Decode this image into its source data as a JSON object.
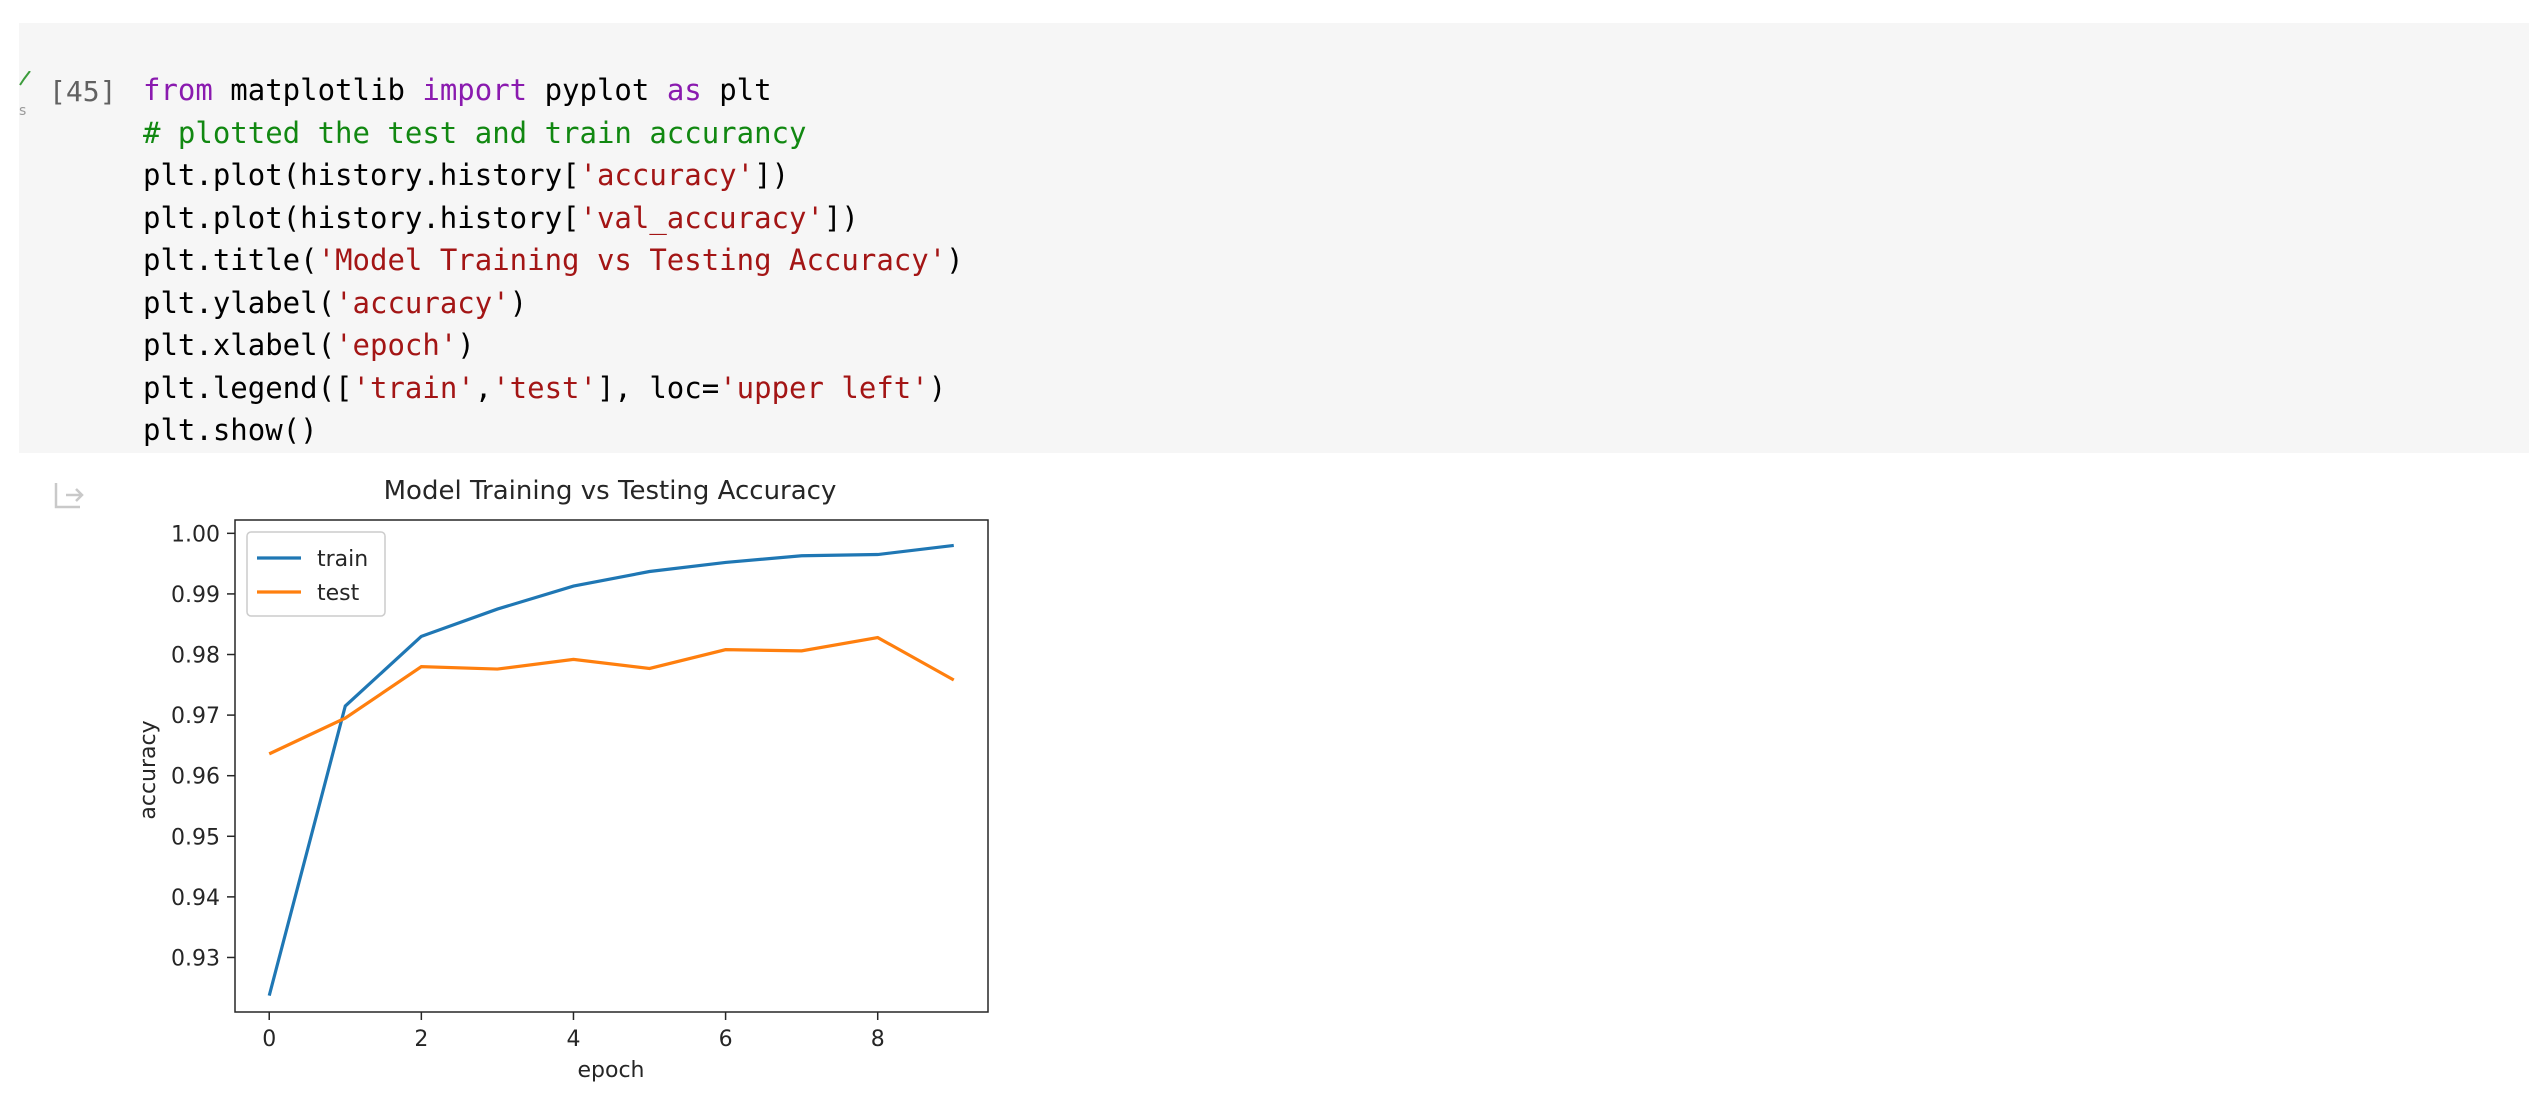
{
  "cell": {
    "execution_count": "[45]",
    "code_lines": [
      [
        {
          "t": "from",
          "c": "kw"
        },
        {
          "t": " matplotlib ",
          "c": ""
        },
        {
          "t": "import",
          "c": "kw"
        },
        {
          "t": " pyplot ",
          "c": ""
        },
        {
          "t": "as",
          "c": "kw"
        },
        {
          "t": " plt",
          "c": ""
        }
      ],
      [
        {
          "t": "# plotted the test and train accurancy",
          "c": "cmt"
        }
      ],
      [
        {
          "t": "plt.plot(history.history[",
          "c": ""
        },
        {
          "t": "'accuracy'",
          "c": "str"
        },
        {
          "t": "])",
          "c": ""
        }
      ],
      [
        {
          "t": "plt.plot(history.history[",
          "c": ""
        },
        {
          "t": "'val_accuracy'",
          "c": "str"
        },
        {
          "t": "])",
          "c": ""
        }
      ],
      [
        {
          "t": "plt.title(",
          "c": ""
        },
        {
          "t": "'Model Training vs Testing Accuracy'",
          "c": "str"
        },
        {
          "t": ")",
          "c": ""
        }
      ],
      [
        {
          "t": "plt.ylabel(",
          "c": ""
        },
        {
          "t": "'accuracy'",
          "c": "str"
        },
        {
          "t": ")",
          "c": ""
        }
      ],
      [
        {
          "t": "plt.xlabel(",
          "c": ""
        },
        {
          "t": "'epoch'",
          "c": "str"
        },
        {
          "t": ")",
          "c": ""
        }
      ],
      [
        {
          "t": "plt.legend([",
          "c": ""
        },
        {
          "t": "'train'",
          "c": "str"
        },
        {
          "t": ",",
          "c": ""
        },
        {
          "t": "'test'",
          "c": "str"
        },
        {
          "t": "], loc=",
          "c": ""
        },
        {
          "t": "'upper left'",
          "c": "str"
        },
        {
          "t": ")",
          "c": ""
        }
      ],
      [
        {
          "t": "plt.show()",
          "c": ""
        }
      ]
    ],
    "status_icon": "check-icon",
    "status_color": "#3c9c3c",
    "status_time": "s"
  },
  "output": {
    "icon": "output-redirect-icon"
  },
  "chart_data": {
    "type": "line",
    "title": "Model Training vs Testing Accuracy",
    "xlabel": "epoch",
    "ylabel": "accuracy",
    "x": [
      0,
      1,
      2,
      3,
      4,
      5,
      6,
      7,
      8,
      9
    ],
    "xticks": [
      "0",
      "2",
      "4",
      "6",
      "8"
    ],
    "yticks": [
      "0.93",
      "0.94",
      "0.95",
      "0.96",
      "0.97",
      "0.98",
      "0.99",
      "1.00"
    ],
    "xlim": [
      -0.45,
      9.45
    ],
    "ylim": [
      0.921,
      1.0022
    ],
    "grid": false,
    "legend_position": "upper left",
    "series": [
      {
        "name": "train",
        "color": "#1f77b4",
        "values": [
          0.9237,
          0.9715,
          0.983,
          0.9875,
          0.9913,
          0.9937,
          0.9952,
          0.9963,
          0.9965,
          0.998
        ]
      },
      {
        "name": "test",
        "color": "#ff7f0e",
        "values": [
          0.9636,
          0.9695,
          0.978,
          0.9776,
          0.9792,
          0.9777,
          0.9808,
          0.9806,
          0.9828,
          0.9758
        ]
      }
    ]
  }
}
